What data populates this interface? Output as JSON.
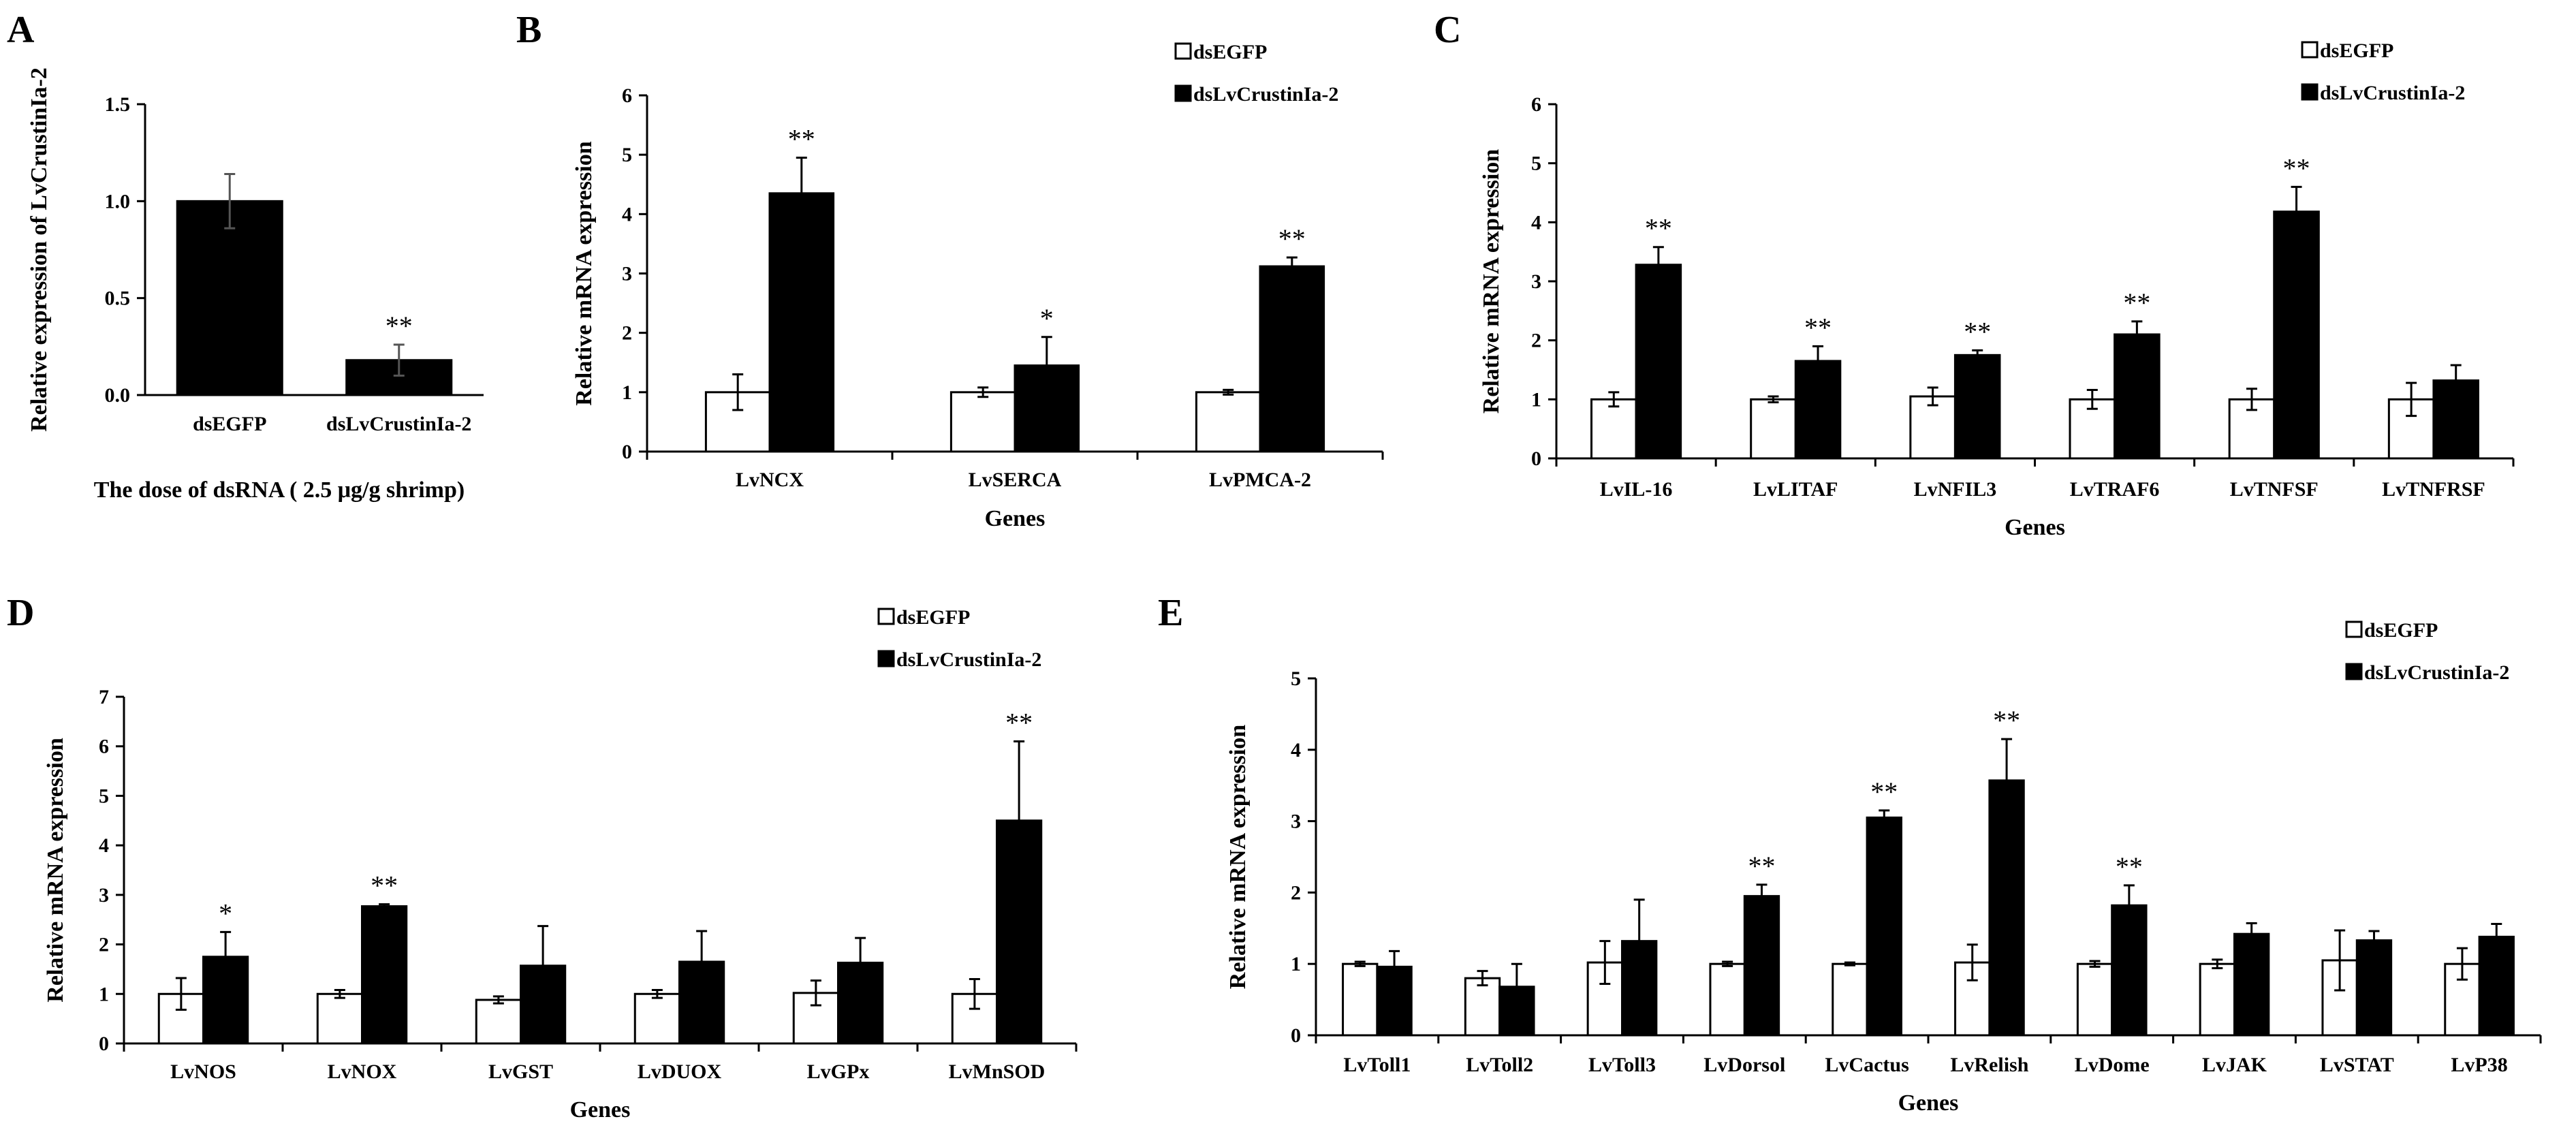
{
  "chart_data": [
    {
      "panel": "A",
      "type": "bar",
      "categories": [
        "dsEGFP",
        "dsLvCrustinIa-2"
      ],
      "values": [
        1.0,
        0.18
      ],
      "errors": [
        0.14,
        0.08
      ],
      "significance": [
        "",
        "**"
      ],
      "ylabel": "Relative expression of LvCrustinIa-2",
      "xlabel": "The dose of dsRNA ( 2.5 μg/g shrimp)",
      "ylim": [
        0,
        1.5
      ],
      "yticks": [
        "0.0",
        "0.5",
        "1.0",
        "1.5"
      ]
    },
    {
      "panel": "B",
      "type": "bar",
      "categories": [
        "LvNCX",
        "LvSERCA",
        "LvPMCA-2"
      ],
      "series": [
        {
          "name": "dsEGFP",
          "color": "#ffffff",
          "values": [
            1.0,
            1.0,
            1.0
          ],
          "errors": [
            0.3,
            0.08,
            0.04
          ]
        },
        {
          "name": "dsLvCrustinIa-2",
          "color": "#000000",
          "values": [
            4.35,
            1.45,
            3.12
          ],
          "errors": [
            0.6,
            0.48,
            0.15
          ]
        }
      ],
      "significance": [
        "**",
        "*",
        "**"
      ],
      "ylabel": "Relative mRNA expression",
      "xlabel": "Genes",
      "ylim": [
        0,
        6
      ],
      "yticks": [
        "0",
        "1",
        "2",
        "3",
        "4",
        "5",
        "6"
      ]
    },
    {
      "panel": "C",
      "type": "bar",
      "categories": [
        "LvIL-16",
        "LvLITAF",
        "LvNFIL3",
        "LvTRAF6",
        "LvTNFSF",
        "LvTNFRSF"
      ],
      "series": [
        {
          "name": "dsEGFP",
          "color": "#ffffff",
          "values": [
            1.0,
            1.0,
            1.05,
            1.0,
            1.0,
            1.0
          ],
          "errors": [
            0.12,
            0.05,
            0.15,
            0.16,
            0.18,
            0.28
          ]
        },
        {
          "name": "dsLvCrustinIa-2",
          "color": "#000000",
          "values": [
            3.28,
            1.65,
            1.75,
            2.1,
            4.18,
            1.32
          ],
          "errors": [
            0.3,
            0.25,
            0.08,
            0.22,
            0.42,
            0.26
          ]
        }
      ],
      "significance": [
        "**",
        "**",
        "**",
        "**",
        "**",
        ""
      ],
      "ylabel": "Relative mRNA expression",
      "xlabel": "Genes",
      "ylim": [
        0,
        6
      ],
      "yticks": [
        "0",
        "1",
        "2",
        "3",
        "4",
        "5",
        "6"
      ]
    },
    {
      "panel": "D",
      "type": "bar",
      "categories": [
        "LvNOS",
        "LvNOX",
        "LvGST",
        "LvDUOX",
        "LvGPx",
        "LvMnSOD"
      ],
      "series": [
        {
          "name": "dsEGFP",
          "color": "#ffffff",
          "values": [
            1.0,
            1.0,
            0.88,
            1.0,
            1.02,
            1.0
          ],
          "errors": [
            0.32,
            0.08,
            0.07,
            0.08,
            0.25,
            0.3
          ]
        },
        {
          "name": "dsLvCrustinIa-2",
          "color": "#000000",
          "values": [
            1.75,
            2.77,
            1.57,
            1.65,
            1.63,
            4.5
          ],
          "errors": [
            0.5,
            0.04,
            0.8,
            0.62,
            0.5,
            1.6
          ]
        }
      ],
      "significance": [
        "*",
        "**",
        "",
        "",
        "",
        "**"
      ],
      "ylabel": "Relative mRNA expression",
      "xlabel": "Genes",
      "ylim": [
        0,
        7
      ],
      "yticks": [
        "0",
        "1",
        "2",
        "3",
        "4",
        "5",
        "6",
        "7"
      ]
    },
    {
      "panel": "E",
      "type": "bar",
      "categories": [
        "LvToll1",
        "LvToll2",
        "LvToll3",
        "LvDorsol",
        "LvCactus",
        "LvRelish",
        "LvDome",
        "LvJAK",
        "LvSTAT",
        "LvP38"
      ],
      "series": [
        {
          "name": "dsEGFP",
          "color": "#ffffff",
          "values": [
            1.0,
            0.8,
            1.02,
            1.0,
            1.0,
            1.02,
            1.0,
            1.0,
            1.05,
            1.0
          ],
          "errors": [
            0.03,
            0.1,
            0.3,
            0.03,
            0.02,
            0.25,
            0.04,
            0.06,
            0.42,
            0.22
          ]
        },
        {
          "name": "dsLvCrustinIa-2",
          "color": "#000000",
          "values": [
            0.96,
            0.68,
            1.32,
            1.95,
            3.05,
            3.57,
            1.82,
            1.42,
            1.33,
            1.38
          ],
          "errors": [
            0.22,
            0.32,
            0.58,
            0.16,
            0.1,
            0.58,
            0.28,
            0.15,
            0.13,
            0.18
          ]
        }
      ],
      "significance": [
        "",
        "",
        "",
        "**",
        "**",
        "**",
        "**",
        "",
        "",
        ""
      ],
      "ylabel": "Relative mRNA expression",
      "xlabel": "Genes",
      "ylim": [
        0,
        5
      ],
      "yticks": [
        "0",
        "1",
        "2",
        "3",
        "4",
        "5"
      ]
    }
  ]
}
